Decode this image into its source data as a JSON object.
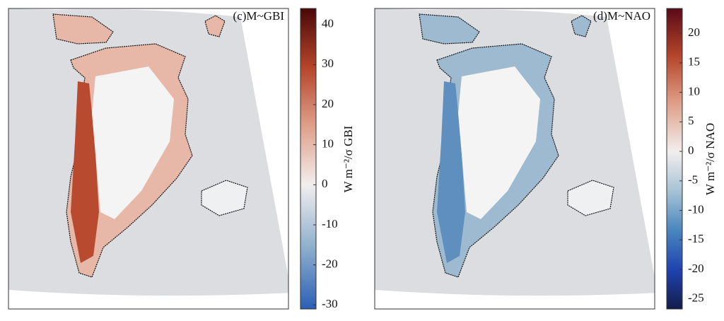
{
  "panels": [
    {
      "label": "(c)M~GBI",
      "colorbar": {
        "label": "W m⁻²/σ GBI",
        "vlim": [
          -31,
          44
        ],
        "ticks": [
          40,
          30,
          20,
          10,
          0,
          -10,
          -20,
          -30
        ],
        "colors_low": [
          "#2a5fb5",
          "#8fb0cc",
          "#f2eeee"
        ],
        "colors_high": [
          "#f2eeee",
          "#dfa08a",
          "#b5452a",
          "#4a0808"
        ]
      },
      "map_colors": {
        "margin": "#e7b8a8",
        "west": "#b84a30"
      }
    },
    {
      "label": "(d)M~NAO",
      "colorbar": {
        "label": "W m⁻²/σ NAO",
        "vlim": [
          -26.7,
          24.2
        ],
        "ticks": [
          20,
          15,
          10,
          5,
          0,
          -5,
          -10,
          -15,
          -20,
          -25
        ],
        "colors_low": [
          "#141c4a",
          "#1f43b0",
          "#4a86bd",
          "#a8c3d6",
          "#f2eeee"
        ],
        "colors_high": [
          "#f2eeee",
          "#dfa08a",
          "#b5452a",
          "#5a0a1a"
        ]
      },
      "map_colors": {
        "margin": "#9dbad0",
        "west": "#5f8fbf"
      }
    }
  ]
}
